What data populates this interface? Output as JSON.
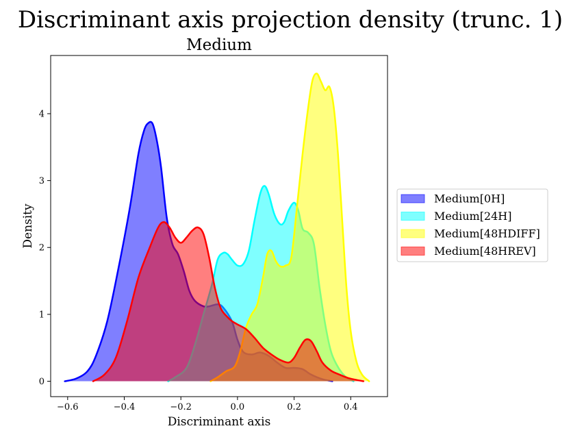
{
  "chart_data": {
    "type": "area",
    "suptitle": "Discriminant axis projection density (trunc. 1)",
    "title": "Medium",
    "xlabel": "Discriminant axis",
    "ylabel": "Density",
    "xlim": [
      -0.66,
      0.53
    ],
    "ylim": [
      -0.23,
      4.87
    ],
    "xticks": [
      -0.6,
      -0.4,
      -0.2,
      0.0,
      0.2,
      0.4
    ],
    "xtick_labels": [
      "−0.6",
      "−0.4",
      "−0.2",
      "0.0",
      "0.2",
      "0.4"
    ],
    "yticks": [
      0,
      1,
      2,
      3,
      4
    ],
    "ytick_labels": [
      "0",
      "1",
      "2",
      "3",
      "4"
    ],
    "grid": false,
    "legend_position": "right, outside plot",
    "series": [
      {
        "name": "Medium[0H]",
        "color": "#0000ff",
        "x": [
          -0.61,
          -0.57,
          -0.53,
          -0.5,
          -0.46,
          -0.42,
          -0.38,
          -0.35,
          -0.33,
          -0.315,
          -0.3,
          -0.285,
          -0.27,
          -0.25,
          -0.23,
          -0.21,
          -0.19,
          -0.17,
          -0.15,
          -0.12,
          -0.1,
          -0.07,
          -0.05,
          -0.02,
          0.0,
          0.02,
          0.05,
          0.08,
          0.11,
          0.14,
          0.17,
          0.2,
          0.23,
          0.26,
          0.3,
          0.335
        ],
        "y": [
          0.0,
          0.04,
          0.15,
          0.38,
          0.9,
          1.7,
          2.6,
          3.4,
          3.75,
          3.86,
          3.85,
          3.6,
          3.2,
          2.45,
          2.05,
          1.9,
          1.65,
          1.35,
          1.2,
          1.12,
          1.12,
          1.15,
          1.1,
          0.9,
          0.62,
          0.44,
          0.4,
          0.43,
          0.38,
          0.28,
          0.2,
          0.2,
          0.18,
          0.1,
          0.03,
          0.0
        ]
      },
      {
        "name": "Medium[24H]",
        "color": "#00ffff",
        "x": [
          -0.245,
          -0.22,
          -0.18,
          -0.15,
          -0.12,
          -0.09,
          -0.07,
          -0.05,
          -0.035,
          -0.02,
          0.0,
          0.02,
          0.04,
          0.06,
          0.08,
          0.095,
          0.11,
          0.13,
          0.15,
          0.165,
          0.18,
          0.2,
          0.215,
          0.23,
          0.25,
          0.27,
          0.29,
          0.31,
          0.33,
          0.35,
          0.37,
          0.39,
          0.41
        ],
        "y": [
          0.0,
          0.06,
          0.2,
          0.55,
          1.0,
          1.45,
          1.82,
          1.92,
          1.9,
          1.82,
          1.73,
          1.75,
          1.95,
          2.4,
          2.8,
          2.92,
          2.8,
          2.5,
          2.35,
          2.38,
          2.55,
          2.67,
          2.55,
          2.28,
          2.22,
          2.05,
          1.4,
          0.85,
          0.45,
          0.25,
          0.12,
          0.04,
          0.0
        ]
      },
      {
        "name": "Medium[48HDIFF]",
        "color": "#ffff00",
        "x": [
          -0.095,
          -0.07,
          -0.04,
          -0.01,
          0.01,
          0.03,
          0.05,
          0.07,
          0.09,
          0.105,
          0.12,
          0.135,
          0.15,
          0.17,
          0.19,
          0.21,
          0.23,
          0.25,
          0.265,
          0.28,
          0.295,
          0.31,
          0.325,
          0.34,
          0.355,
          0.37,
          0.385,
          0.4,
          0.42,
          0.44,
          0.465
        ],
        "y": [
          0.0,
          0.06,
          0.15,
          0.22,
          0.45,
          0.8,
          1.0,
          1.15,
          1.55,
          1.9,
          1.95,
          1.8,
          1.72,
          1.73,
          1.85,
          2.6,
          3.4,
          4.1,
          4.5,
          4.6,
          4.48,
          4.35,
          4.4,
          4.1,
          3.4,
          2.4,
          1.4,
          0.75,
          0.3,
          0.1,
          0.0
        ]
      },
      {
        "name": "Medium[48HREV]",
        "color": "#ff0000",
        "x": [
          -0.51,
          -0.47,
          -0.43,
          -0.39,
          -0.35,
          -0.31,
          -0.28,
          -0.26,
          -0.24,
          -0.22,
          -0.2,
          -0.18,
          -0.16,
          -0.14,
          -0.12,
          -0.1,
          -0.08,
          -0.06,
          -0.04,
          -0.02,
          0.0,
          0.03,
          0.06,
          0.09,
          0.12,
          0.15,
          0.18,
          0.2,
          0.22,
          0.24,
          0.26,
          0.28,
          0.3,
          0.33,
          0.36,
          0.39,
          0.42,
          0.445
        ],
        "y": [
          0.0,
          0.1,
          0.35,
          0.9,
          1.55,
          2.0,
          2.3,
          2.38,
          2.3,
          2.15,
          2.07,
          2.15,
          2.25,
          2.3,
          2.2,
          1.85,
          1.4,
          1.1,
          0.98,
          0.9,
          0.85,
          0.78,
          0.65,
          0.5,
          0.4,
          0.32,
          0.28,
          0.35,
          0.5,
          0.62,
          0.6,
          0.45,
          0.28,
          0.16,
          0.1,
          0.05,
          0.02,
          0.0
        ]
      }
    ]
  }
}
